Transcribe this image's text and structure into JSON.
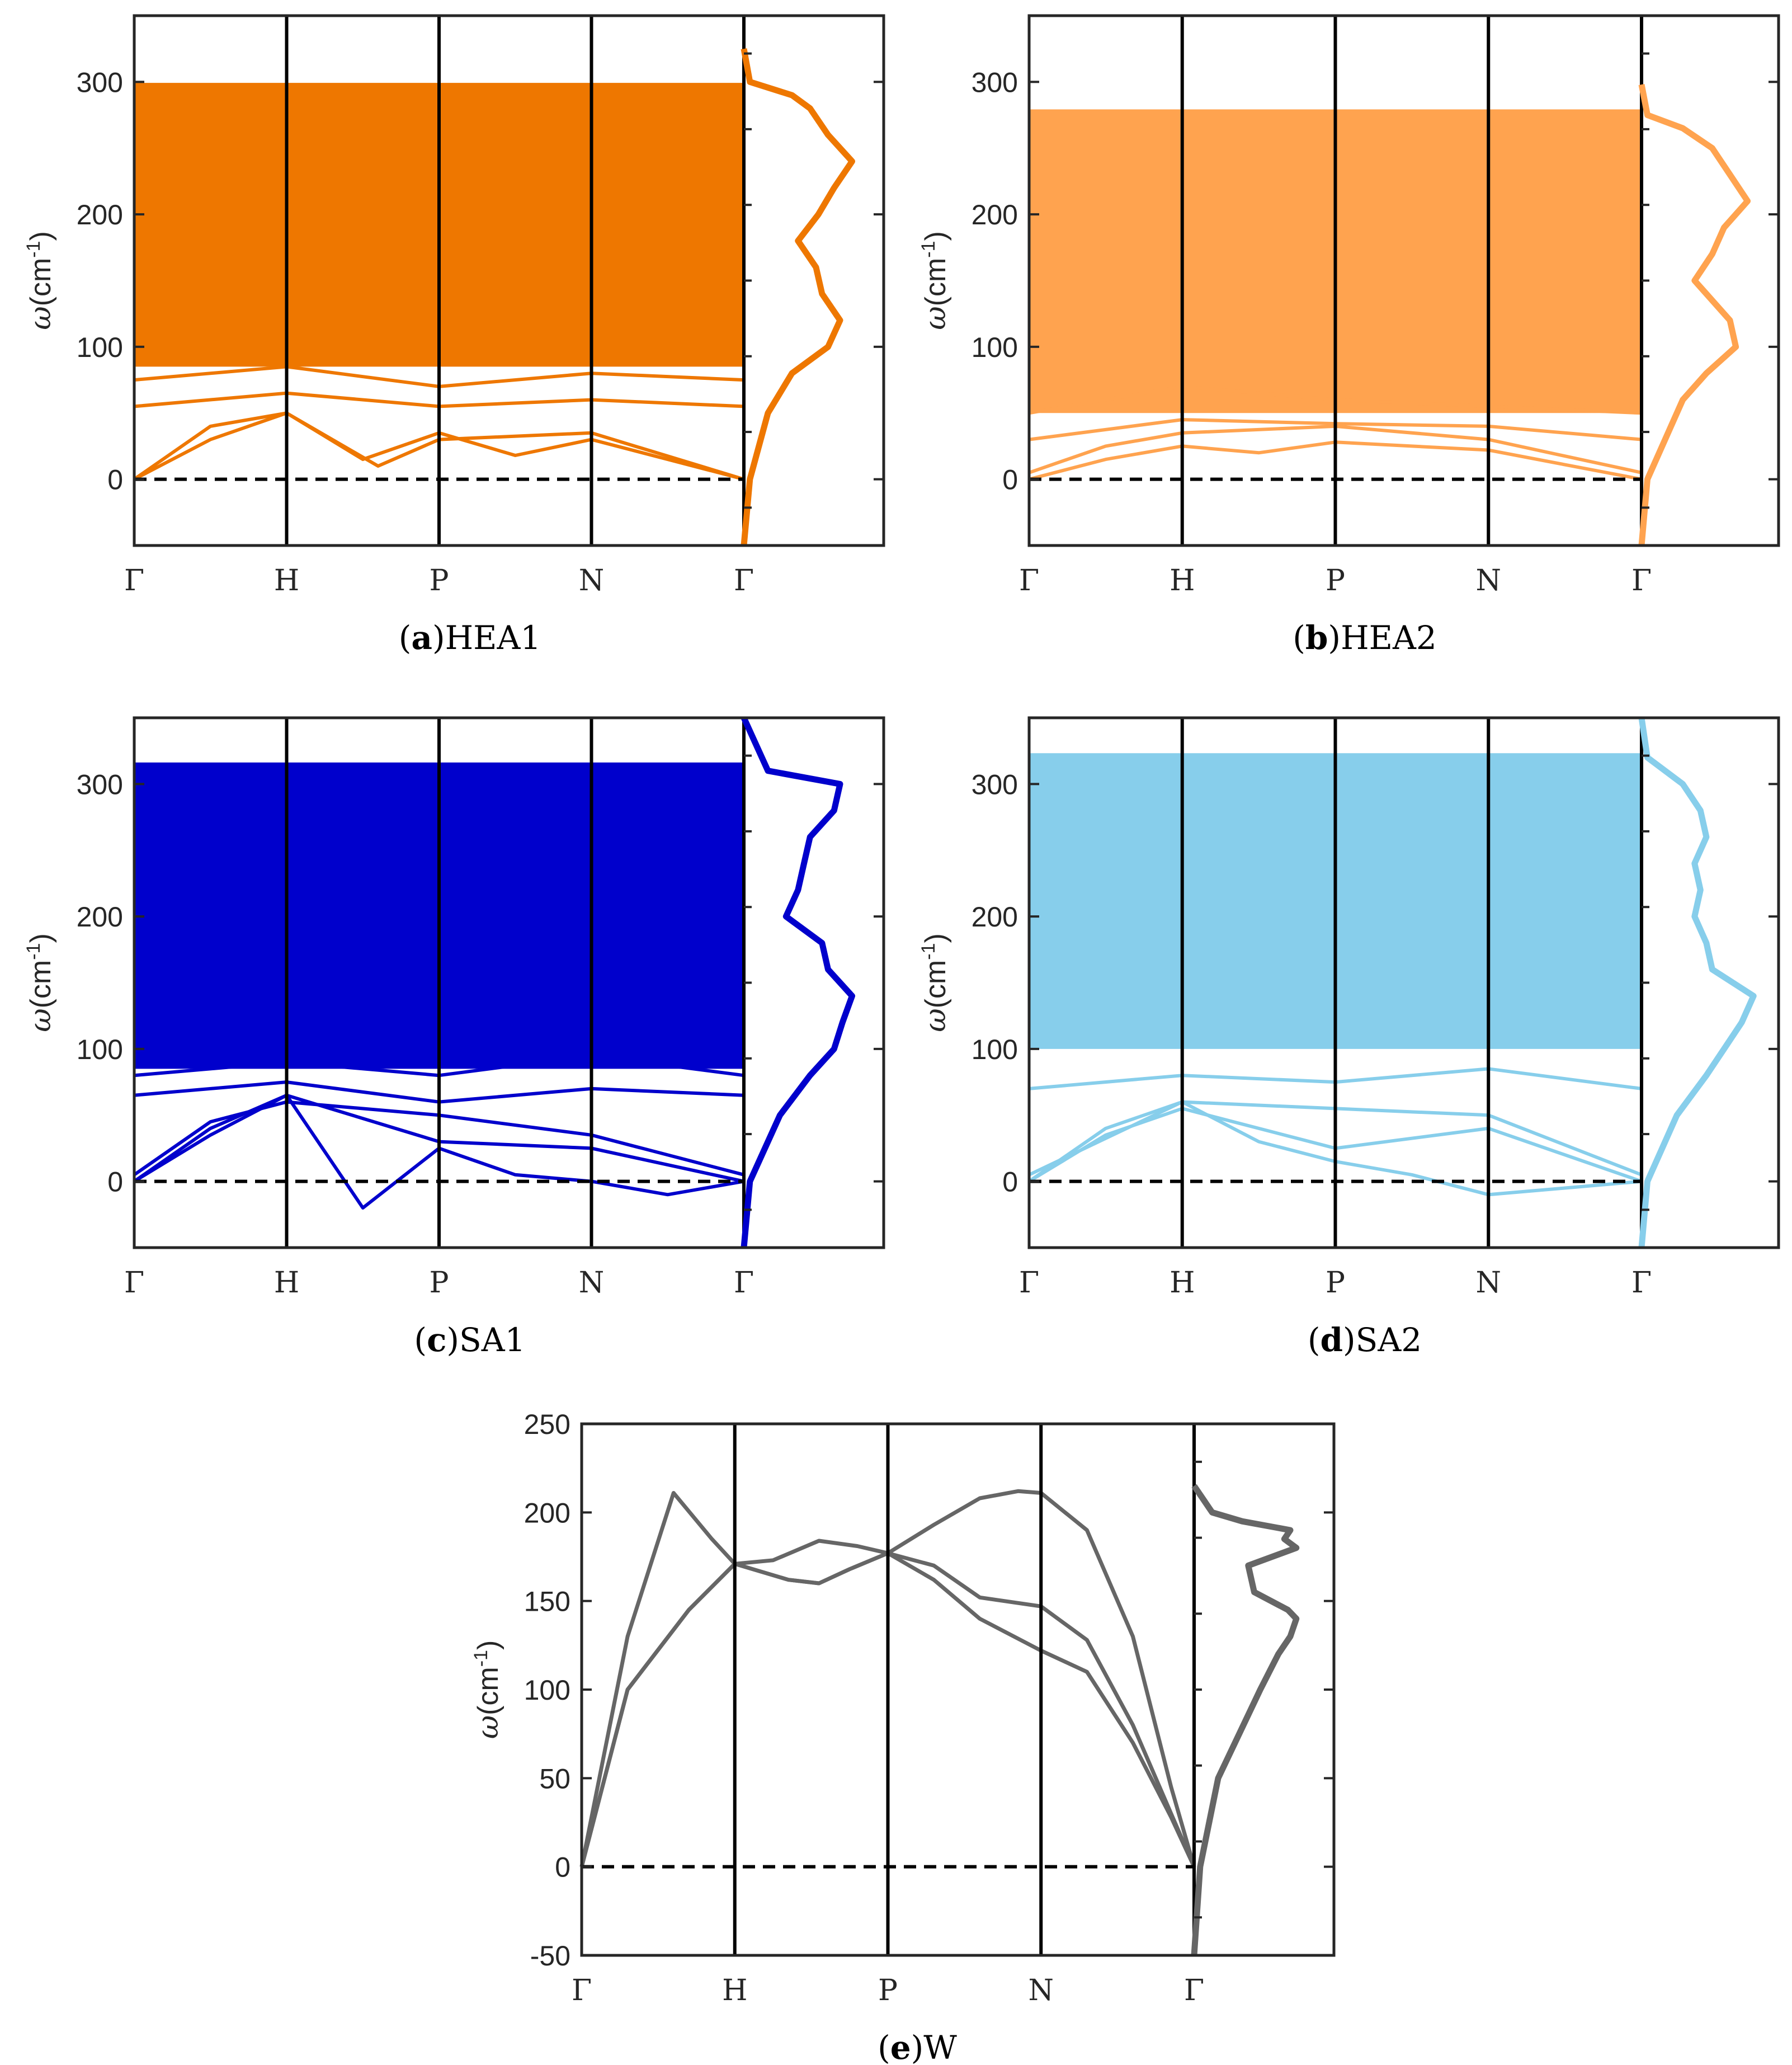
{
  "panels": [
    {
      "letter": "a",
      "caption": "HEA1",
      "color": "#EE7700",
      "yticks": [
        "0",
        "100",
        "200",
        "300"
      ],
      "ylim": [
        -50,
        350
      ],
      "xticks": [
        "Γ",
        "H",
        "P",
        "N",
        "Γ"
      ],
      "ylabel": {
        "symbol": "ω",
        "unit": "(cm",
        "exp": "-1",
        "close": ")"
      }
    },
    {
      "letter": "b",
      "caption": "HEA2",
      "color": "#FFA34F",
      "yticks": [
        "0",
        "100",
        "200",
        "300"
      ],
      "ylim": [
        -50,
        350
      ],
      "xticks": [
        "Γ",
        "H",
        "P",
        "N",
        "Γ"
      ],
      "ylabel": {
        "symbol": "ω",
        "unit": "(cm",
        "exp": "-1",
        "close": ")"
      }
    },
    {
      "letter": "c",
      "caption": "SA1",
      "color": "#0000CC",
      "yticks": [
        "0",
        "100",
        "200",
        "300"
      ],
      "ylim": [
        -50,
        350
      ],
      "xticks": [
        "Γ",
        "H",
        "P",
        "N",
        "Γ"
      ],
      "ylabel": {
        "symbol": "ω",
        "unit": "(cm",
        "exp": "-1",
        "close": ")"
      }
    },
    {
      "letter": "d",
      "caption": "SA2",
      "color": "#87CEEB",
      "yticks": [
        "0",
        "100",
        "200",
        "300"
      ],
      "ylim": [
        -50,
        350
      ],
      "xticks": [
        "Γ",
        "H",
        "P",
        "N",
        "Γ"
      ],
      "ylabel": {
        "symbol": "ω",
        "unit": "(cm",
        "exp": "-1",
        "close": ")"
      }
    },
    {
      "letter": "e",
      "caption": "W",
      "color": "#666666",
      "yticks": [
        "-50",
        "0",
        "50",
        "100",
        "150",
        "200",
        "250"
      ],
      "ylim": [
        -50,
        250
      ],
      "xticks": [
        "Γ",
        "H",
        "P",
        "N",
        "Γ"
      ],
      "ylabel": {
        "symbol": "ω",
        "unit": "(cm",
        "exp": "-1",
        "close": ")"
      }
    }
  ],
  "chart_data": [
    {
      "type": "line",
      "title": "HEA1",
      "color": "#EE7700",
      "x": [
        "Γ",
        "H",
        "P",
        "N",
        "Γ"
      ],
      "ylabel": "ω(cm-1)",
      "ylim": [
        -50,
        350
      ],
      "band_fill": [
        85,
        298
      ],
      "series": [
        {
          "values": [
            [
              0,
              0
            ],
            [
              0.5,
              40
            ],
            [
              1,
              50
            ],
            [
              1.5,
              15
            ],
            [
              2,
              35
            ],
            [
              2.5,
              18
            ],
            [
              3,
              30
            ],
            [
              3.5,
              15
            ],
            [
              4,
              0
            ]
          ]
        },
        {
          "values": [
            [
              0,
              0
            ],
            [
              0.5,
              30
            ],
            [
              1,
              50
            ],
            [
              1.6,
              10
            ],
            [
              2,
              30
            ],
            [
              3,
              35
            ],
            [
              4,
              0
            ]
          ]
        },
        {
          "values": [
            [
              0,
              55
            ],
            [
              1,
              65
            ],
            [
              2,
              55
            ],
            [
              3,
              60
            ],
            [
              4,
              55
            ]
          ]
        },
        {
          "values": [
            [
              0,
              75
            ],
            [
              1,
              85
            ],
            [
              2,
              70
            ],
            [
              3,
              80
            ],
            [
              4,
              75
            ]
          ]
        },
        {
          "values": [
            [
              0,
              298
            ],
            [
              4,
              298
            ]
          ]
        }
      ],
      "dos": [
        [
          -50,
          0
        ],
        [
          0,
          0.05
        ],
        [
          50,
          0.2
        ],
        [
          80,
          0.4
        ],
        [
          100,
          0.7
        ],
        [
          120,
          0.8
        ],
        [
          140,
          0.65
        ],
        [
          160,
          0.6
        ],
        [
          180,
          0.45
        ],
        [
          200,
          0.62
        ],
        [
          220,
          0.75
        ],
        [
          240,
          0.9
        ],
        [
          260,
          0.7
        ],
        [
          280,
          0.55
        ],
        [
          290,
          0.4
        ],
        [
          300,
          0.05
        ],
        [
          325,
          0.0
        ]
      ]
    },
    {
      "type": "line",
      "title": "HEA2",
      "color": "#FFA34F",
      "x": [
        "Γ",
        "H",
        "P",
        "N",
        "Γ"
      ],
      "ylabel": "ω(cm-1)",
      "ylim": [
        -50,
        350
      ],
      "band_fill": [
        50,
        278
      ],
      "series": [
        {
          "values": [
            [
              0,
              0
            ],
            [
              0.5,
              15
            ],
            [
              1,
              25
            ],
            [
              1.5,
              20
            ],
            [
              2,
              28
            ],
            [
              3,
              22
            ],
            [
              4,
              0
            ]
          ]
        },
        {
          "values": [
            [
              0,
              5
            ],
            [
              0.5,
              25
            ],
            [
              1,
              35
            ],
            [
              2,
              40
            ],
            [
              3,
              30
            ],
            [
              4,
              5
            ]
          ]
        },
        {
          "values": [
            [
              0,
              30
            ],
            [
              1,
              45
            ],
            [
              2,
              42
            ],
            [
              3,
              40
            ],
            [
              4,
              30
            ]
          ]
        },
        {
          "values": [
            [
              0,
              50
            ],
            [
              1,
              70
            ],
            [
              2,
              60
            ],
            [
              3,
              55
            ],
            [
              4,
              50
            ]
          ]
        },
        {
          "values": [
            [
              0,
              278
            ],
            [
              4,
              278
            ]
          ]
        }
      ],
      "dos": [
        [
          -50,
          0
        ],
        [
          0,
          0.05
        ],
        [
          30,
          0.2
        ],
        [
          60,
          0.35
        ],
        [
          80,
          0.55
        ],
        [
          100,
          0.8
        ],
        [
          120,
          0.75
        ],
        [
          150,
          0.45
        ],
        [
          170,
          0.6
        ],
        [
          190,
          0.7
        ],
        [
          210,
          0.9
        ],
        [
          230,
          0.75
        ],
        [
          250,
          0.6
        ],
        [
          265,
          0.35
        ],
        [
          275,
          0.05
        ],
        [
          298,
          0.0
        ]
      ]
    },
    {
      "type": "line",
      "title": "SA1",
      "color": "#0000CC",
      "x": [
        "Γ",
        "H",
        "P",
        "N",
        "Γ"
      ],
      "ylabel": "ω(cm-1)",
      "ylim": [
        -50,
        350
      ],
      "band_fill": [
        85,
        315
      ],
      "series": [
        {
          "values": [
            [
              0,
              0
            ],
            [
              0.5,
              40
            ],
            [
              1,
              65
            ],
            [
              1.5,
              -20
            ],
            [
              2,
              25
            ],
            [
              2.5,
              5
            ],
            [
              3,
              0
            ],
            [
              3.5,
              -10
            ],
            [
              4,
              0
            ]
          ]
        },
        {
          "values": [
            [
              0,
              0
            ],
            [
              0.5,
              35
            ],
            [
              1,
              65
            ],
            [
              2,
              30
            ],
            [
              3,
              25
            ],
            [
              4,
              0
            ]
          ]
        },
        {
          "values": [
            [
              0,
              5
            ],
            [
              0.5,
              45
            ],
            [
              1,
              60
            ],
            [
              2,
              50
            ],
            [
              3,
              35
            ],
            [
              4,
              5
            ]
          ]
        },
        {
          "values": [
            [
              0,
              65
            ],
            [
              1,
              75
            ],
            [
              2,
              60
            ],
            [
              3,
              70
            ],
            [
              4,
              65
            ]
          ]
        },
        {
          "values": [
            [
              0,
              80
            ],
            [
              1,
              90
            ],
            [
              2,
              80
            ],
            [
              3,
              95
            ],
            [
              4,
              80
            ]
          ]
        },
        {
          "values": [
            [
              0,
              315
            ],
            [
              4,
              315
            ]
          ]
        }
      ],
      "dos": [
        [
          -50,
          0
        ],
        [
          0,
          0.05
        ],
        [
          50,
          0.3
        ],
        [
          80,
          0.55
        ],
        [
          100,
          0.75
        ],
        [
          120,
          0.82
        ],
        [
          140,
          0.9
        ],
        [
          160,
          0.7
        ],
        [
          180,
          0.65
        ],
        [
          200,
          0.35
        ],
        [
          220,
          0.45
        ],
        [
          240,
          0.5
        ],
        [
          260,
          0.55
        ],
        [
          280,
          0.75
        ],
        [
          300,
          0.8
        ],
        [
          310,
          0.2
        ],
        [
          350,
          0.0
        ]
      ]
    },
    {
      "type": "line",
      "title": "SA2",
      "color": "#87CEEB",
      "x": [
        "Γ",
        "H",
        "P",
        "N",
        "Γ"
      ],
      "ylabel": "ω(cm-1)",
      "ylim": [
        -50,
        350
      ],
      "band_fill": [
        100,
        322
      ],
      "series": [
        {
          "values": [
            [
              0,
              0
            ],
            [
              0.5,
              40
            ],
            [
              1,
              60
            ],
            [
              1.5,
              30
            ],
            [
              2,
              15
            ],
            [
              2.5,
              5
            ],
            [
              3,
              -10
            ],
            [
              3.5,
              -5
            ],
            [
              4,
              0
            ]
          ]
        },
        {
          "values": [
            [
              0,
              0
            ],
            [
              0.5,
              35
            ],
            [
              1,
              55
            ],
            [
              2,
              25
            ],
            [
              3,
              40
            ],
            [
              4,
              0
            ]
          ]
        },
        {
          "values": [
            [
              0,
              5
            ],
            [
              1,
              60
            ],
            [
              2,
              55
            ],
            [
              3,
              50
            ],
            [
              4,
              5
            ]
          ]
        },
        {
          "values": [
            [
              0,
              70
            ],
            [
              1,
              80
            ],
            [
              2,
              75
            ],
            [
              3,
              85
            ],
            [
              4,
              70
            ]
          ]
        },
        {
          "values": [
            [
              0,
              322
            ],
            [
              4,
              322
            ]
          ]
        }
      ],
      "dos": [
        [
          -50,
          0
        ],
        [
          0,
          0.05
        ],
        [
          50,
          0.3
        ],
        [
          80,
          0.55
        ],
        [
          100,
          0.7
        ],
        [
          120,
          0.85
        ],
        [
          140,
          0.95
        ],
        [
          160,
          0.6
        ],
        [
          180,
          0.55
        ],
        [
          200,
          0.45
        ],
        [
          220,
          0.5
        ],
        [
          240,
          0.45
        ],
        [
          260,
          0.55
        ],
        [
          280,
          0.5
        ],
        [
          300,
          0.35
        ],
        [
          320,
          0.05
        ],
        [
          350,
          0.0
        ]
      ]
    },
    {
      "type": "line",
      "title": "W",
      "color": "#666666",
      "x": [
        "Γ",
        "H",
        "P",
        "N",
        "Γ"
      ],
      "ylabel": "ω(cm-1)",
      "ylim": [
        -50,
        250
      ],
      "series": [
        {
          "name": "",
          "values": [
            [
              0,
              0
            ],
            [
              0.3,
              130
            ],
            [
              0.6,
              211
            ],
            [
              0.85,
              185
            ],
            [
              1,
              171
            ],
            [
              1.25,
              173
            ],
            [
              1.55,
              184
            ],
            [
              1.8,
              181
            ],
            [
              2,
              177
            ],
            [
              2.3,
              193
            ],
            [
              2.6,
              208
            ],
            [
              2.85,
              212
            ],
            [
              3,
              211
            ],
            [
              3.3,
              190
            ],
            [
              3.6,
              130
            ],
            [
              3.85,
              45
            ],
            [
              4,
              0
            ]
          ]
        },
        {
          "name": "",
          "values": [
            [
              0,
              0
            ],
            [
              0.3,
              100
            ],
            [
              0.7,
              145
            ],
            [
              1,
              171
            ],
            [
              1.35,
              162
            ],
            [
              1.55,
              160
            ],
            [
              1.75,
              168
            ],
            [
              2,
              177
            ],
            [
              2.3,
              170
            ],
            [
              2.6,
              152
            ],
            [
              3,
              147
            ],
            [
              3.3,
              128
            ],
            [
              3.6,
              80
            ],
            [
              3.85,
              30
            ],
            [
              4,
              0
            ]
          ]
        },
        {
          "name": "",
          "values": [
            [
              0,
              0
            ],
            [
              0.3,
              100
            ],
            [
              0.7,
              145
            ],
            [
              1,
              171
            ],
            [
              1.35,
              162
            ],
            [
              1.55,
              160
            ],
            [
              1.75,
              168
            ],
            [
              2,
              177
            ],
            [
              2.3,
              162
            ],
            [
              2.6,
              140
            ],
            [
              3,
              122
            ],
            [
              3.3,
              110
            ],
            [
              3.6,
              70
            ],
            [
              3.85,
              28
            ],
            [
              4,
              0
            ]
          ]
        }
      ],
      "dos": [
        [
          -50,
          0
        ],
        [
          0,
          0.05
        ],
        [
          50,
          0.2
        ],
        [
          100,
          0.55
        ],
        [
          120,
          0.7
        ],
        [
          130,
          0.8
        ],
        [
          140,
          0.85
        ],
        [
          145,
          0.78
        ],
        [
          155,
          0.5
        ],
        [
          170,
          0.45
        ],
        [
          180,
          0.85
        ],
        [
          185,
          0.75
        ],
        [
          190,
          0.8
        ],
        [
          195,
          0.4
        ],
        [
          200,
          0.15
        ],
        [
          215,
          0.0
        ]
      ]
    }
  ]
}
